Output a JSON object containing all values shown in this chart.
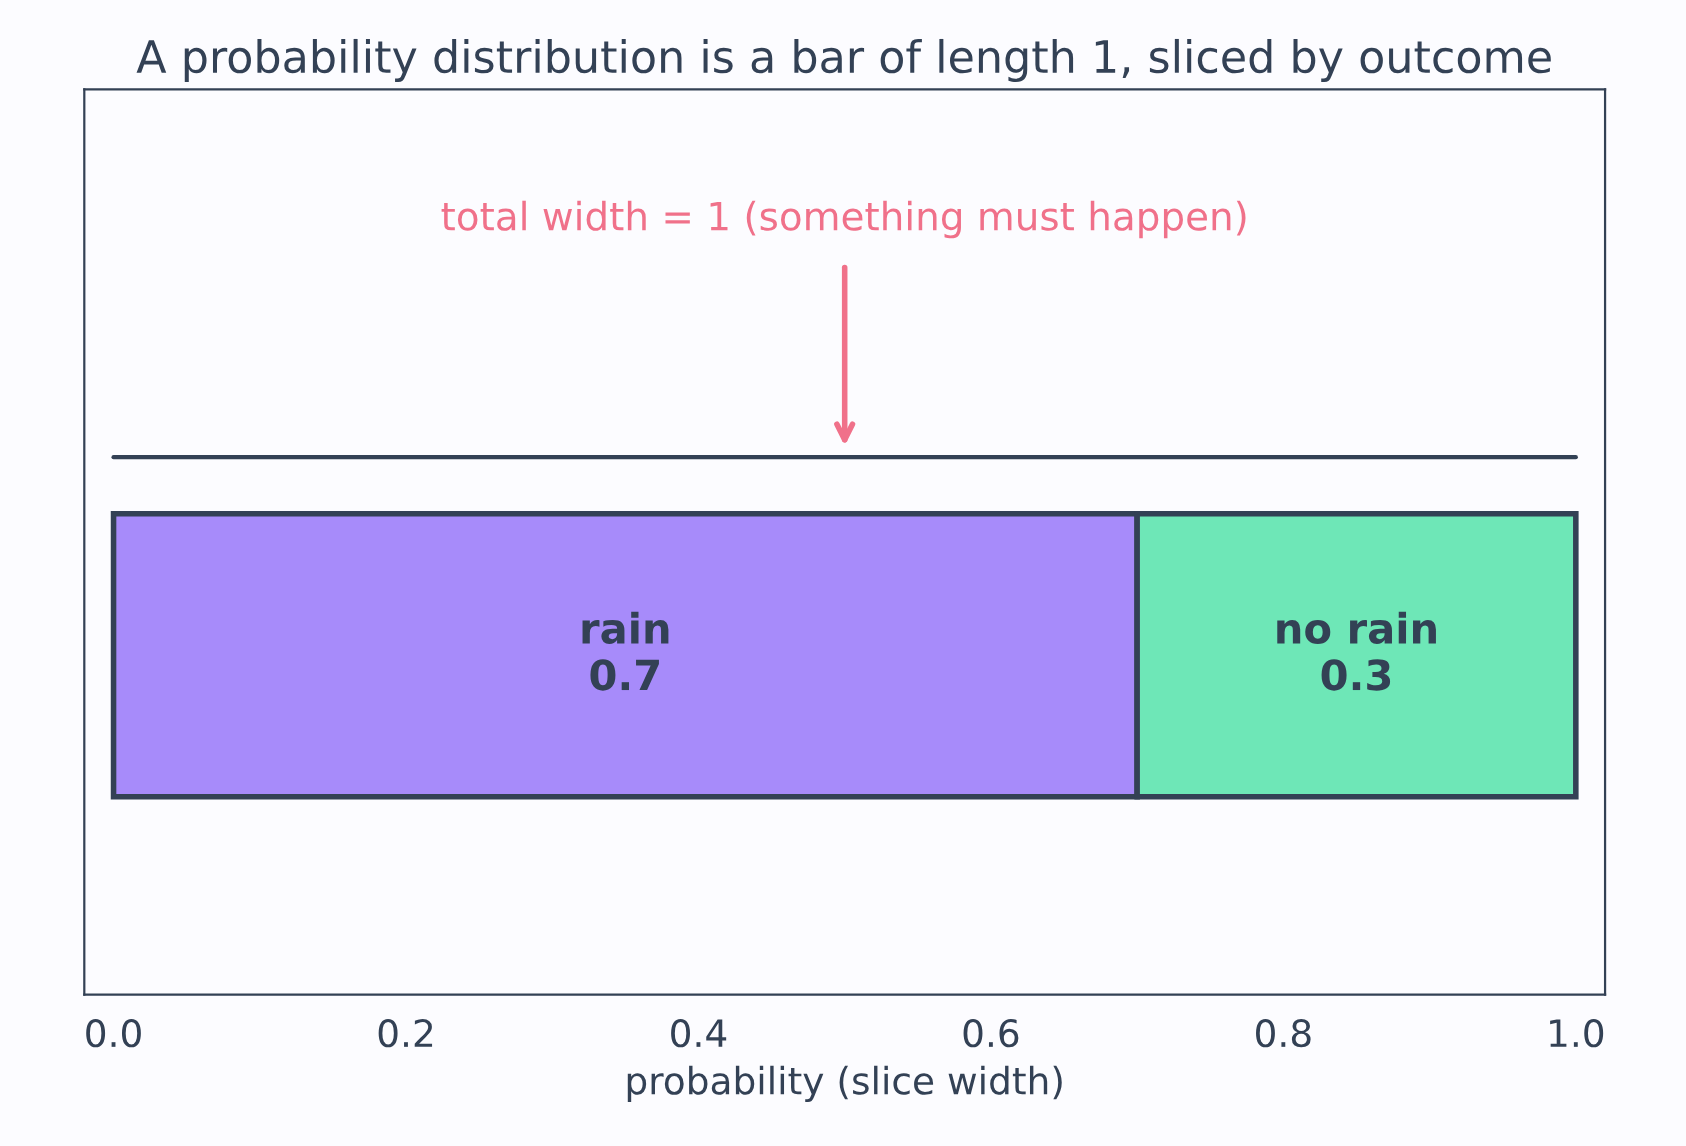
{
  "chart_data": {
    "type": "bar",
    "orientation": "horizontal",
    "stacked": true,
    "title": "A probability distribution is a bar of length 1, sliced by outcome",
    "xlabel": "probability (slice width)",
    "categories": [
      null
    ],
    "series": [
      {
        "name": "rain",
        "color": "#a78bfa",
        "values": [
          0.7
        ]
      },
      {
        "name": "no rain",
        "color": "#6ee7b7",
        "values": [
          0.3
        ]
      }
    ],
    "data_labels": true,
    "annotations": [
      "total width = 1 (something must happen)"
    ],
    "xlim": [
      -0.02,
      1.02
    ],
    "xticks": [
      {
        "value": 0,
        "label": "0.0"
      },
      {
        "value": 0.2,
        "label": "0.2"
      },
      {
        "value": 0.4,
        "label": "0.4"
      },
      {
        "value": 0.6,
        "label": "0.6"
      },
      {
        "value": 0.8,
        "label": "0.8"
      },
      {
        "value": 1,
        "label": "1.0"
      }
    ],
    "tick_labels": "x",
    "legend": false,
    "grid": false
  }
}
